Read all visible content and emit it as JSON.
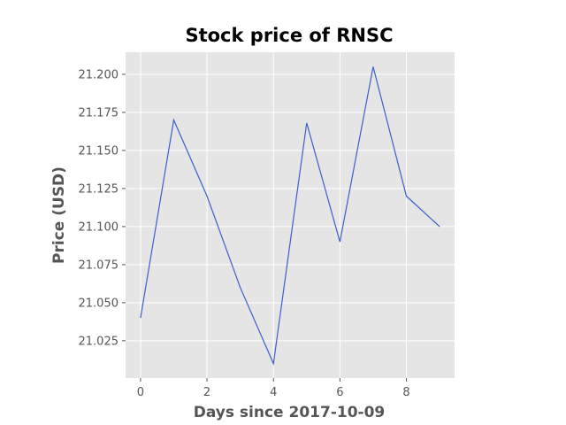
{
  "chart_data": {
    "type": "line",
    "title": "Stock price of RNSC",
    "xlabel": "Days since 2017-10-09",
    "ylabel": "Price (USD)",
    "x": [
      0,
      1,
      2,
      3,
      4,
      5,
      6,
      7,
      8,
      9
    ],
    "series": [
      {
        "values": [
          21.04,
          21.17,
          21.12,
          21.06,
          21.01,
          21.168,
          21.09,
          21.205,
          21.12,
          21.1
        ]
      }
    ],
    "xlim": [
      -0.45,
      9.45
    ],
    "ylim": [
      21.0005,
      21.2145
    ],
    "xticks": [
      0,
      2,
      4,
      6,
      8
    ],
    "xtick_labels": [
      "0",
      "2",
      "4",
      "6",
      "8"
    ],
    "yticks": [
      21.025,
      21.05,
      21.075,
      21.1,
      21.125,
      21.15,
      21.175,
      21.2
    ],
    "ytick_labels": [
      "21.025",
      "21.050",
      "21.075",
      "21.100",
      "21.125",
      "21.150",
      "21.175",
      "21.200"
    ],
    "grid": true,
    "colors": {
      "plot_background": "#e5e5e5",
      "grid": "#ffffff",
      "line": "#3a5fcd",
      "tick_text": "#555555"
    }
  }
}
